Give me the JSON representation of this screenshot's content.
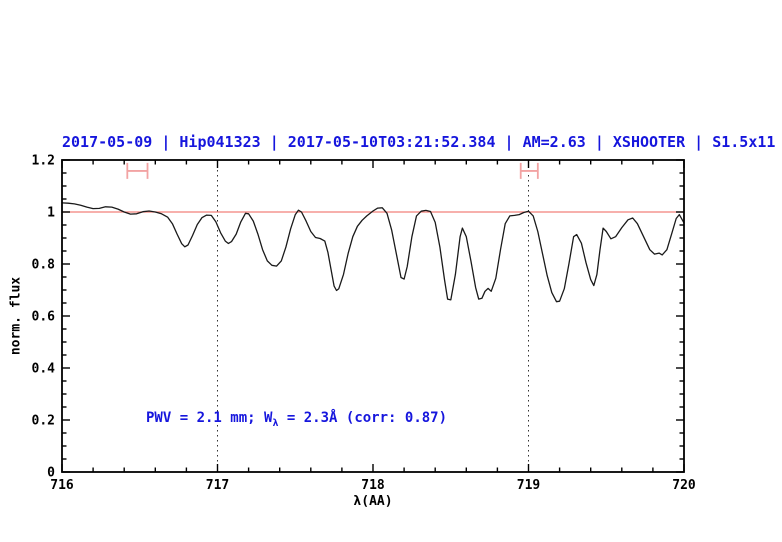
{
  "figure": {
    "background": "#ffffff"
  },
  "chart_data": {
    "type": "line",
    "title": "2017-05-09 | Hip041323 | 2017-05-10T03:21:52.384 | AM=2.63 | XSHOOTER | S1.5x11",
    "title_color": "#1616dd",
    "xlabel": "λ(AA)",
    "ylabel": "norm. flux",
    "xlim": [
      716,
      720
    ],
    "ylim": [
      0,
      1.2
    ],
    "grid": false,
    "x_ticks": {
      "major": [
        716,
        717,
        718,
        719,
        720
      ],
      "labels": [
        "716",
        "717",
        "718",
        "719",
        "720"
      ],
      "minor_step": 0.2
    },
    "y_ticks": {
      "major": [
        0,
        0.2,
        0.4,
        0.6,
        0.8,
        1.0,
        1.2
      ],
      "labels": [
        "0",
        "0.2",
        "0.4",
        "0.6",
        "0.8",
        "1",
        "1.2"
      ],
      "minor_step": 0.05
    },
    "vlines": {
      "x": [
        717,
        719
      ],
      "style": "dotted",
      "color": "#333333"
    },
    "continuum_line": {
      "y": 1.0,
      "color": "#f2817a"
    },
    "band_markers": [
      {
        "x_from": 716.42,
        "x_to": 716.55,
        "y": 1.158,
        "color": "#f2a3a3"
      },
      {
        "x_from": 718.95,
        "x_to": 719.06,
        "y": 1.158,
        "color": "#f2a3a3"
      }
    ],
    "annotation": {
      "prefix": "PWV = 2.1 mm; W",
      "sub": "λ",
      "suffix": " = 2.3Å (corr: 0.87)",
      "color": "#1616dd"
    },
    "series": [
      {
        "name": "telluric-spectrum",
        "color": "#1a1a1a",
        "points": [
          [
            716.0,
            1.035
          ],
          [
            716.04,
            1.034
          ],
          [
            716.08,
            1.031
          ],
          [
            716.12,
            1.026
          ],
          [
            716.16,
            1.019
          ],
          [
            716.2,
            1.013
          ],
          [
            716.24,
            1.014
          ],
          [
            716.28,
            1.02
          ],
          [
            716.32,
            1.019
          ],
          [
            716.36,
            1.011
          ],
          [
            716.4,
            1.0
          ],
          [
            716.44,
            0.992
          ],
          [
            716.48,
            0.993
          ],
          [
            716.52,
            1.001
          ],
          [
            716.56,
            1.004
          ],
          [
            716.6,
            1.0
          ],
          [
            716.64,
            0.993
          ],
          [
            716.68,
            0.98
          ],
          [
            716.71,
            0.955
          ],
          [
            716.74,
            0.915
          ],
          [
            716.77,
            0.878
          ],
          [
            716.79,
            0.866
          ],
          [
            716.81,
            0.873
          ],
          [
            716.84,
            0.91
          ],
          [
            716.87,
            0.952
          ],
          [
            716.9,
            0.978
          ],
          [
            716.93,
            0.988
          ],
          [
            716.96,
            0.987
          ],
          [
            716.99,
            0.962
          ],
          [
            717.02,
            0.92
          ],
          [
            717.05,
            0.888
          ],
          [
            717.07,
            0.879
          ],
          [
            717.09,
            0.886
          ],
          [
            717.12,
            0.915
          ],
          [
            717.15,
            0.962
          ],
          [
            717.18,
            0.995
          ],
          [
            717.2,
            0.993
          ],
          [
            717.23,
            0.965
          ],
          [
            717.26,
            0.915
          ],
          [
            717.29,
            0.855
          ],
          [
            717.32,
            0.812
          ],
          [
            717.35,
            0.795
          ],
          [
            717.38,
            0.792
          ],
          [
            717.41,
            0.812
          ],
          [
            717.44,
            0.865
          ],
          [
            717.47,
            0.935
          ],
          [
            717.5,
            0.99
          ],
          [
            717.52,
            1.007
          ],
          [
            717.54,
            1.0
          ],
          [
            717.57,
            0.965
          ],
          [
            717.6,
            0.925
          ],
          [
            717.63,
            0.902
          ],
          [
            717.66,
            0.898
          ],
          [
            717.69,
            0.888
          ],
          [
            717.71,
            0.845
          ],
          [
            717.73,
            0.78
          ],
          [
            717.75,
            0.715
          ],
          [
            717.765,
            0.698
          ],
          [
            717.78,
            0.705
          ],
          [
            717.81,
            0.76
          ],
          [
            717.84,
            0.84
          ],
          [
            717.87,
            0.905
          ],
          [
            717.9,
            0.945
          ],
          [
            717.93,
            0.968
          ],
          [
            717.96,
            0.985
          ],
          [
            718.0,
            1.004
          ],
          [
            718.03,
            1.015
          ],
          [
            718.06,
            1.016
          ],
          [
            718.09,
            0.995
          ],
          [
            718.12,
            0.93
          ],
          [
            718.15,
            0.84
          ],
          [
            718.18,
            0.748
          ],
          [
            718.2,
            0.742
          ],
          [
            718.22,
            0.79
          ],
          [
            718.25,
            0.905
          ],
          [
            718.28,
            0.985
          ],
          [
            718.31,
            1.003
          ],
          [
            718.34,
            1.006
          ],
          [
            718.37,
            1.002
          ],
          [
            718.4,
            0.96
          ],
          [
            718.43,
            0.865
          ],
          [
            718.46,
            0.74
          ],
          [
            718.48,
            0.665
          ],
          [
            718.5,
            0.662
          ],
          [
            718.53,
            0.76
          ],
          [
            718.56,
            0.905
          ],
          [
            718.575,
            0.938
          ],
          [
            718.6,
            0.905
          ],
          [
            718.63,
            0.81
          ],
          [
            718.66,
            0.71
          ],
          [
            718.68,
            0.665
          ],
          [
            718.7,
            0.668
          ],
          [
            718.72,
            0.695
          ],
          [
            718.74,
            0.706
          ],
          [
            718.76,
            0.695
          ],
          [
            718.79,
            0.745
          ],
          [
            718.82,
            0.855
          ],
          [
            718.85,
            0.955
          ],
          [
            718.88,
            0.985
          ],
          [
            718.91,
            0.987
          ],
          [
            718.94,
            0.99
          ],
          [
            718.97,
            0.998
          ],
          [
            719.0,
            1.003
          ],
          [
            719.03,
            0.985
          ],
          [
            719.06,
            0.925
          ],
          [
            719.09,
            0.84
          ],
          [
            719.12,
            0.755
          ],
          [
            719.15,
            0.69
          ],
          [
            719.18,
            0.655
          ],
          [
            719.2,
            0.657
          ],
          [
            719.23,
            0.705
          ],
          [
            719.26,
            0.8
          ],
          [
            719.29,
            0.905
          ],
          [
            719.31,
            0.913
          ],
          [
            719.34,
            0.88
          ],
          [
            719.37,
            0.805
          ],
          [
            719.4,
            0.74
          ],
          [
            719.42,
            0.717
          ],
          [
            719.44,
            0.76
          ],
          [
            719.46,
            0.855
          ],
          [
            719.48,
            0.938
          ],
          [
            719.5,
            0.925
          ],
          [
            719.53,
            0.897
          ],
          [
            719.56,
            0.905
          ],
          [
            719.6,
            0.94
          ],
          [
            719.64,
            0.97
          ],
          [
            719.67,
            0.977
          ],
          [
            719.7,
            0.955
          ],
          [
            719.74,
            0.905
          ],
          [
            719.78,
            0.855
          ],
          [
            719.81,
            0.838
          ],
          [
            719.84,
            0.842
          ],
          [
            719.86,
            0.835
          ],
          [
            719.89,
            0.855
          ],
          [
            719.92,
            0.915
          ],
          [
            719.95,
            0.975
          ],
          [
            719.97,
            0.99
          ],
          [
            720.0,
            0.958
          ]
        ]
      }
    ]
  }
}
